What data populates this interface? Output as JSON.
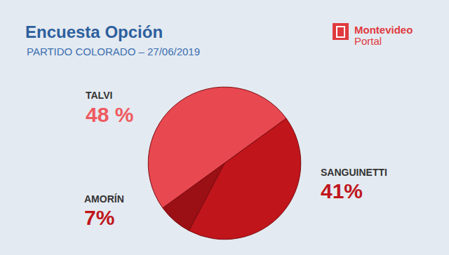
{
  "chart_data": {
    "type": "pie",
    "title": "Encuesta Opción",
    "subtitle": "PARTIDO COLORADO – 27/06/2019",
    "categories": [
      "TALVI",
      "SANGUINETTI",
      "AMORÍN"
    ],
    "values": [
      48,
      41,
      7
    ],
    "value_labels": [
      "48 %",
      "41%",
      "7%"
    ],
    "colors": [
      "#e84850",
      "#c0151b",
      "#9a1015"
    ],
    "data_labels": true,
    "annotations": [
      "Montevideo",
      "Portal"
    ]
  }
}
